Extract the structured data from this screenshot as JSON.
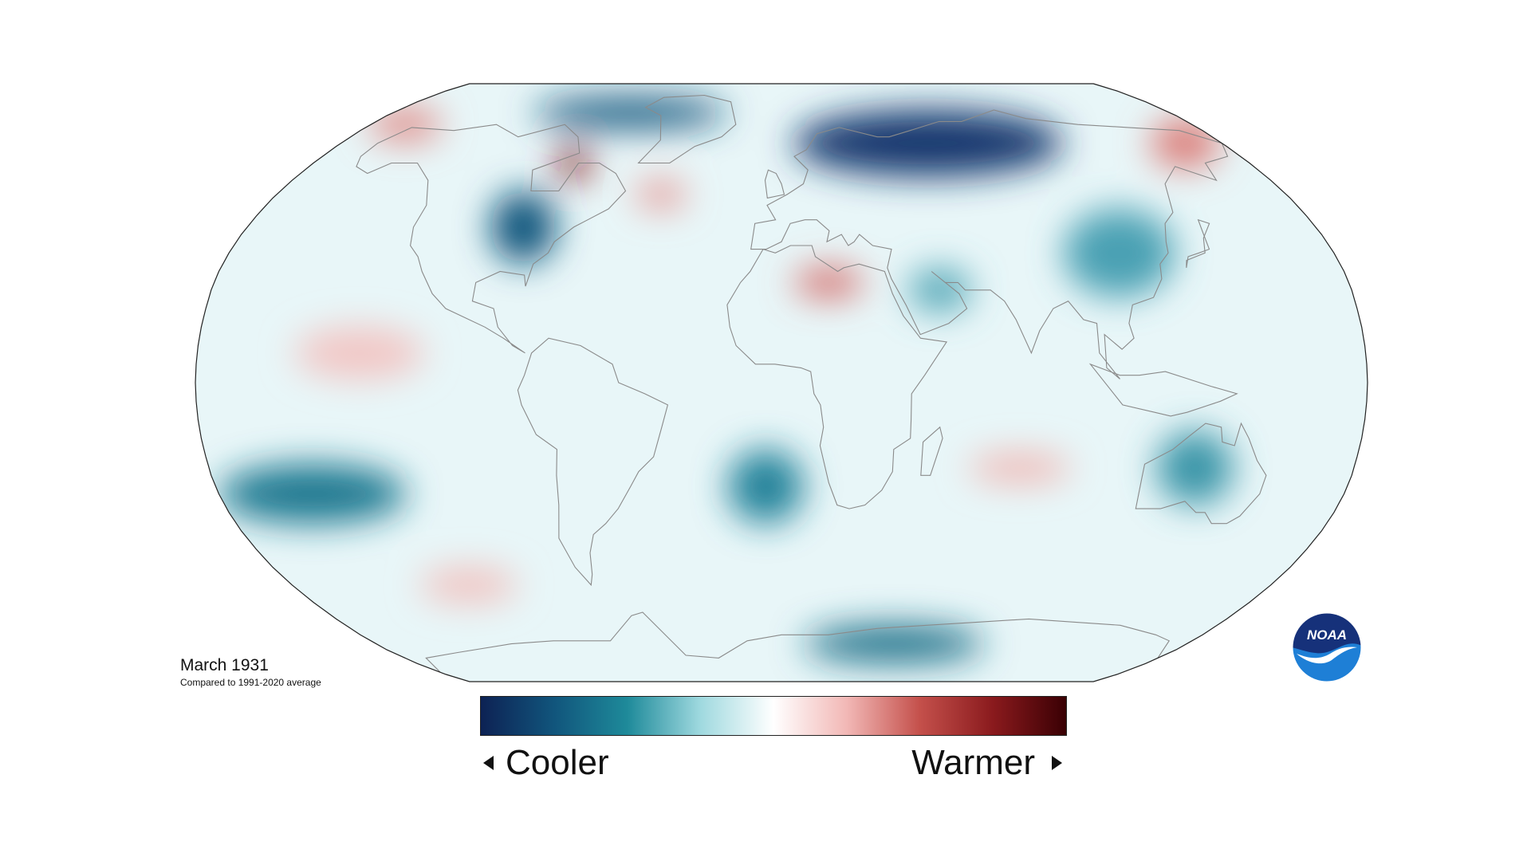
{
  "map": {
    "projection": "Robinson",
    "title": "March 1931",
    "subtitle": "Compared to 1991-2020 average",
    "anomaly_blobs": [
      {
        "name": "hudson-bay",
        "type": "warm",
        "lon": -80,
        "lat": 60,
        "rx": 6,
        "ry": 5,
        "color": "#7a0c10"
      },
      {
        "name": "north-atlantic",
        "type": "warm",
        "lon": -43,
        "lat": 51,
        "rx": 9,
        "ry": 4,
        "color": "#e69a96"
      },
      {
        "name": "north-africa",
        "type": "warm",
        "lon": 15,
        "lat": 27,
        "rx": 11,
        "ry": 4,
        "color": "#d46a68"
      },
      {
        "name": "east-siberia",
        "type": "warm",
        "lon": 165,
        "lat": 66,
        "rx": 14,
        "ry": 8,
        "color": "#dc7b77"
      },
      {
        "name": "alaska-north",
        "type": "warm",
        "lon": -165,
        "lat": 72,
        "rx": 16,
        "ry": 6,
        "color": "#e08f8b"
      },
      {
        "name": "central-pacific",
        "type": "warm",
        "lon": -130,
        "lat": 8,
        "rx": 20,
        "ry": 7,
        "color": "#f2c6c4"
      },
      {
        "name": "indian-ocean",
        "type": "warm",
        "lon": 75,
        "lat": -23,
        "rx": 16,
        "ry": 4,
        "color": "#f0b8b4"
      },
      {
        "name": "south-pacific",
        "type": "warm",
        "lon": -115,
        "lat": -55,
        "rx": 18,
        "ry": 5,
        "color": "#f1c3c0"
      },
      {
        "name": "eurasia",
        "type": "cool",
        "lon": 60,
        "lat": 66,
        "rx": 55,
        "ry": 11,
        "color": "#13386e"
      },
      {
        "name": "canada-arctic",
        "type": "cool",
        "lon": -70,
        "lat": 76,
        "rx": 45,
        "ry": 6,
        "color": "#16577e"
      },
      {
        "name": "us-east",
        "type": "cool",
        "lon": -87,
        "lat": 42,
        "rx": 11,
        "ry": 10,
        "color": "#11557c"
      },
      {
        "name": "south-pacific-west",
        "type": "cool",
        "lon": -150,
        "lat": -30,
        "rx": 30,
        "ry": 8,
        "color": "#1e7890"
      },
      {
        "name": "south-atlantic",
        "type": "cool",
        "lon": -5,
        "lat": -28,
        "rx": 12,
        "ry": 10,
        "color": "#22829a"
      },
      {
        "name": "australia",
        "type": "cool",
        "lon": 130,
        "lat": -23,
        "rx": 12,
        "ry": 10,
        "color": "#3a95a8"
      },
      {
        "name": "antarctic-east",
        "type": "cool",
        "lon": 50,
        "lat": -73,
        "rx": 40,
        "ry": 6,
        "color": "#1e6f88"
      },
      {
        "name": "middle-east",
        "type": "cool",
        "lon": 50,
        "lat": 25,
        "rx": 10,
        "ry": 6,
        "color": "#56a9b8"
      },
      {
        "name": "china",
        "type": "cool",
        "lon": 110,
        "lat": 35,
        "rx": 18,
        "ry": 12,
        "color": "#4aa0b3"
      }
    ]
  },
  "legend": {
    "cool_label": "Cooler",
    "warm_label": "Warmer",
    "colors": [
      "#0d2254",
      "#11557c",
      "#1e8a9a",
      "#9fd9df",
      "#ffffff",
      "#f2b8b6",
      "#c4504b",
      "#8a1a1d",
      "#3a0004"
    ]
  },
  "logo": {
    "text": "NOAA",
    "colors": {
      "top": "#16317a",
      "bottom": "#1e7fd6",
      "bird": "#ffffff"
    }
  }
}
